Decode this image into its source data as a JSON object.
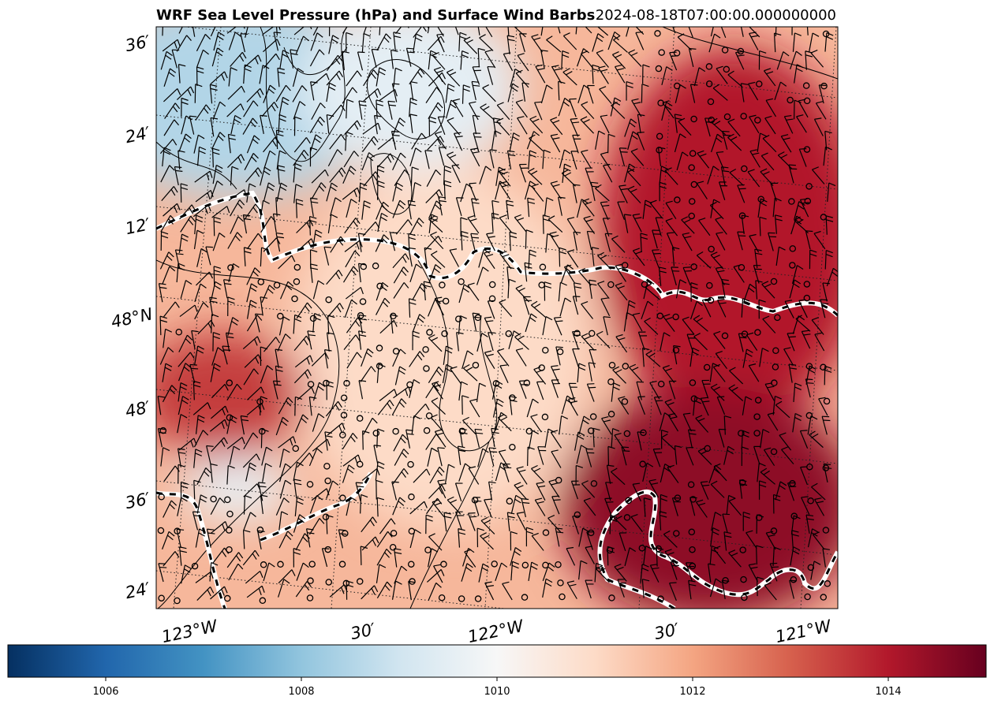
{
  "chart_data": {
    "type": "heatmap",
    "title": "WRF Sea Level Pressure (hPa) and Surface Wind Barbs",
    "timestamp": "2024-08-18T07:00:00.000000000",
    "lat_ticks": [
      "36′",
      "24′",
      "12′",
      "48°N",
      "48′",
      "36′",
      "24′"
    ],
    "lon_ticks": [
      "123°W",
      "30′",
      "122°W",
      "30′",
      "121°W"
    ],
    "colormap": "RdBu_r",
    "colorbar": {
      "range": [
        1005,
        1015
      ],
      "ticks": [
        1006,
        1008,
        1010,
        1012,
        1014
      ],
      "colors": [
        "#053061",
        "#2166ac",
        "#4393c3",
        "#92c5de",
        "#d1e5f0",
        "#f7f7f7",
        "#fddbc7",
        "#f4a582",
        "#d6604d",
        "#b2182b",
        "#67001f"
      ]
    },
    "pressure_regions": [
      {
        "area": "northwest",
        "approx_hPa": 1008.5
      },
      {
        "area": "north-central",
        "approx_hPa": 1009.5
      },
      {
        "area": "center",
        "approx_hPa": 1011.0
      },
      {
        "area": "west low",
        "approx_hPa": 1013.5
      },
      {
        "area": "east",
        "approx_hPa": 1014.0
      },
      {
        "area": "southeast",
        "approx_hPa": 1014.5
      }
    ],
    "overlays": [
      "sea level pressure contours",
      "surface wind barbs",
      "calm wind circles",
      "lat/lon gridlines",
      "dashed boundaries"
    ]
  }
}
